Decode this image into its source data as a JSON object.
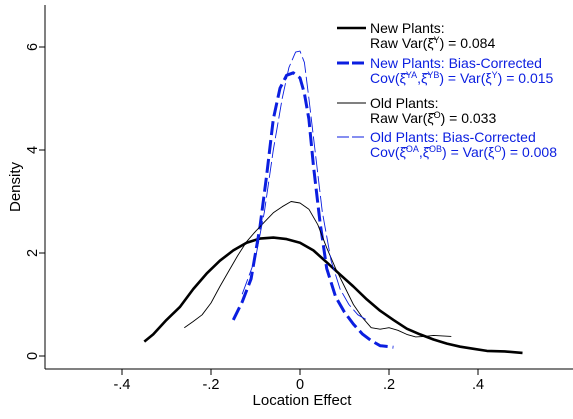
{
  "chart_data": {
    "type": "line",
    "title": "",
    "xlabel": "Location Effect",
    "ylabel": "Density",
    "xlim": [
      -0.57,
      0.63
    ],
    "ylim": [
      -0.2,
      6.85
    ],
    "x_ticks": [
      -0.4,
      -0.2,
      0,
      0.2,
      0.4
    ],
    "x_tick_labels": [
      "-.4",
      "-.2",
      "0",
      ".2",
      ".4"
    ],
    "y_ticks": [
      0,
      2,
      4,
      6
    ],
    "y_tick_labels": [
      "0",
      "2",
      "4",
      "6"
    ],
    "grid": false,
    "legend_position": "top-right",
    "series": [
      {
        "legend": [
          "New Plants:",
          "Raw Var(ξ̂",
          "Y",
          ") = 0.084"
        ],
        "color": "#000000",
        "style": "solid-thick",
        "points": [
          [
            -0.35,
            0.28
          ],
          [
            -0.33,
            0.42
          ],
          [
            -0.3,
            0.7
          ],
          [
            -0.27,
            0.95
          ],
          [
            -0.24,
            1.3
          ],
          [
            -0.21,
            1.6
          ],
          [
            -0.18,
            1.85
          ],
          [
            -0.15,
            2.05
          ],
          [
            -0.12,
            2.2
          ],
          [
            -0.09,
            2.28
          ],
          [
            -0.06,
            2.3
          ],
          [
            -0.03,
            2.27
          ],
          [
            0.0,
            2.2
          ],
          [
            0.03,
            2.05
          ],
          [
            0.06,
            1.82
          ],
          [
            0.09,
            1.58
          ],
          [
            0.12,
            1.35
          ],
          [
            0.15,
            1.1
          ],
          [
            0.18,
            0.88
          ],
          [
            0.21,
            0.7
          ],
          [
            0.24,
            0.53
          ],
          [
            0.27,
            0.42
          ],
          [
            0.3,
            0.32
          ],
          [
            0.33,
            0.24
          ],
          [
            0.36,
            0.18
          ],
          [
            0.39,
            0.14
          ],
          [
            0.42,
            0.1
          ],
          [
            0.46,
            0.09
          ],
          [
            0.5,
            0.06
          ]
        ]
      },
      {
        "legend": [
          "New Plants: Bias-Corrected",
          "Cov(ξ̂",
          "YA",
          ",ξ̂",
          "YB",
          ") = Var(ξ",
          "Y",
          ") = 0.015"
        ],
        "color": "#0b1ee0",
        "style": "long-dash-thick",
        "points": [
          [
            -0.15,
            0.7
          ],
          [
            -0.13,
            1.05
          ],
          [
            -0.11,
            1.5
          ],
          [
            -0.09,
            2.5
          ],
          [
            -0.075,
            3.5
          ],
          [
            -0.06,
            4.6
          ],
          [
            -0.045,
            5.2
          ],
          [
            -0.03,
            5.45
          ],
          [
            -0.015,
            5.5
          ],
          [
            0.0,
            5.4
          ],
          [
            0.01,
            5.1
          ],
          [
            0.02,
            4.6
          ],
          [
            0.03,
            3.7
          ],
          [
            0.045,
            2.6
          ],
          [
            0.06,
            1.7
          ],
          [
            0.08,
            1.15
          ],
          [
            0.1,
            0.85
          ],
          [
            0.12,
            0.62
          ],
          [
            0.14,
            0.43
          ],
          [
            0.16,
            0.3
          ],
          [
            0.18,
            0.2
          ],
          [
            0.21,
            0.17
          ]
        ]
      },
      {
        "legend": [
          "Old Plants:",
          "Raw Var(ξ̂",
          "O",
          ") = 0.033"
        ],
        "color": "#000000",
        "style": "solid-thin",
        "points": [
          [
            -0.26,
            0.55
          ],
          [
            -0.24,
            0.67
          ],
          [
            -0.22,
            0.8
          ],
          [
            -0.2,
            1.03
          ],
          [
            -0.18,
            1.35
          ],
          [
            -0.16,
            1.65
          ],
          [
            -0.14,
            1.95
          ],
          [
            -0.12,
            2.22
          ],
          [
            -0.1,
            2.42
          ],
          [
            -0.08,
            2.6
          ],
          [
            -0.06,
            2.78
          ],
          [
            -0.04,
            2.9
          ],
          [
            -0.02,
            3.0
          ],
          [
            0.0,
            2.97
          ],
          [
            0.02,
            2.85
          ],
          [
            0.04,
            2.55
          ],
          [
            0.06,
            2.1
          ],
          [
            0.08,
            1.7
          ],
          [
            0.1,
            1.35
          ],
          [
            0.12,
            1.0
          ],
          [
            0.14,
            0.75
          ],
          [
            0.16,
            0.55
          ],
          [
            0.18,
            0.52
          ],
          [
            0.2,
            0.55
          ],
          [
            0.22,
            0.5
          ],
          [
            0.24,
            0.42
          ],
          [
            0.26,
            0.37
          ],
          [
            0.28,
            0.38
          ],
          [
            0.3,
            0.4
          ],
          [
            0.34,
            0.38
          ]
        ]
      },
      {
        "legend": [
          "Old Plants: Bias-Corrected",
          "Cov(ξ̂",
          "OA",
          ",ξ̂",
          "OB",
          ") = Var(ξ",
          "O",
          ") = 0.008"
        ],
        "color": "#0b1ee0",
        "style": "long-dash-thin",
        "points": [
          [
            -0.13,
            1.2
          ],
          [
            -0.1,
            1.9
          ],
          [
            -0.08,
            2.8
          ],
          [
            -0.06,
            4.0
          ],
          [
            -0.04,
            5.0
          ],
          [
            -0.025,
            5.6
          ],
          [
            -0.01,
            5.9
          ],
          [
            0.0,
            5.92
          ],
          [
            0.01,
            5.7
          ],
          [
            0.02,
            5.0
          ],
          [
            0.035,
            3.9
          ],
          [
            0.05,
            2.8
          ],
          [
            0.07,
            1.85
          ],
          [
            0.09,
            1.3
          ],
          [
            0.11,
            1.0
          ],
          [
            0.13,
            0.8
          ],
          [
            0.15,
            0.7
          ]
        ]
      }
    ]
  }
}
